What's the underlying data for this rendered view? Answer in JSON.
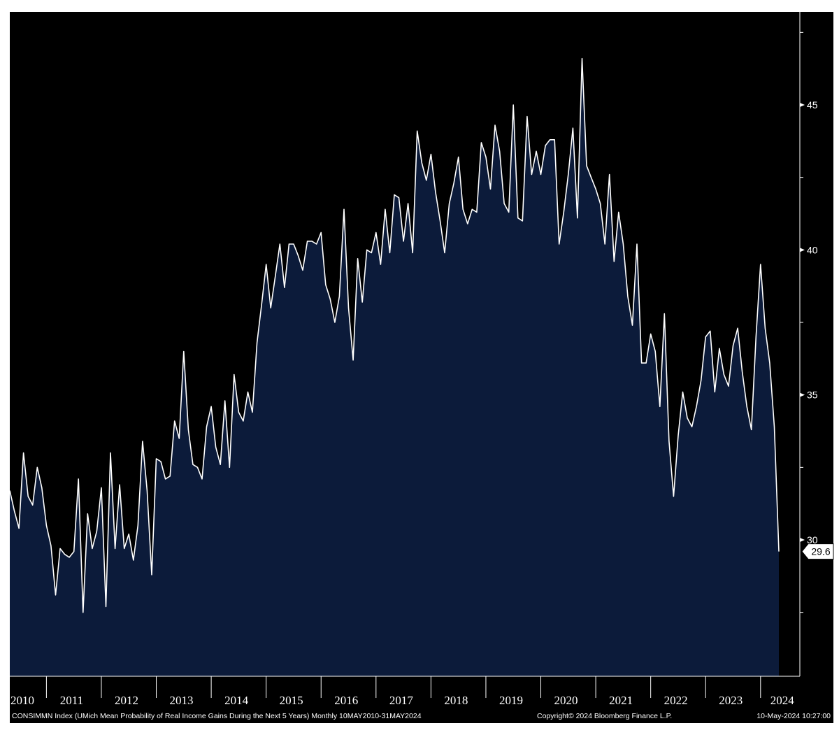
{
  "chart_data": {
    "type": "area",
    "x_start": "2010-05",
    "x_end": "2024-05",
    "frequency": "Monthly",
    "ylim": [
      25,
      48.5
    ],
    "yticks": [
      30,
      35,
      40,
      45
    ],
    "x_year_labels": [
      "2010",
      "2011",
      "2012",
      "2013",
      "2014",
      "2015",
      "2016",
      "2017",
      "2018",
      "2019",
      "2020",
      "2021",
      "2022",
      "2023",
      "2024"
    ],
    "last_value_label": "29.6",
    "grid": false,
    "colors": {
      "background": "#000000",
      "fill": "#0c1b3a",
      "line": "#ffffff"
    },
    "values": [
      31.7,
      31.0,
      30.4,
      33.0,
      31.5,
      31.2,
      32.5,
      31.8,
      30.5,
      29.8,
      28.1,
      29.7,
      29.5,
      29.4,
      29.6,
      32.1,
      27.5,
      30.9,
      29.7,
      30.3,
      31.8,
      27.7,
      33.0,
      29.7,
      31.9,
      29.7,
      30.2,
      29.3,
      30.5,
      33.4,
      31.7,
      28.8,
      32.8,
      32.7,
      32.1,
      32.2,
      34.1,
      33.5,
      36.5,
      33.8,
      32.6,
      32.5,
      32.1,
      33.9,
      34.6,
      33.2,
      32.6,
      34.8,
      32.5,
      35.7,
      34.4,
      34.1,
      35.1,
      34.4,
      36.8,
      38.1,
      39.5,
      38.0,
      39.1,
      40.2,
      38.7,
      40.2,
      40.2,
      39.8,
      39.3,
      40.3,
      40.3,
      40.2,
      40.6,
      38.8,
      38.3,
      37.5,
      38.4,
      41.4,
      38.0,
      36.2,
      39.7,
      38.2,
      40.0,
      39.9,
      40.6,
      39.5,
      41.4,
      39.9,
      41.9,
      41.8,
      40.3,
      41.6,
      39.9,
      44.1,
      43.0,
      42.4,
      43.3,
      42.0,
      41.0,
      39.9,
      41.6,
      42.3,
      43.2,
      41.4,
      40.9,
      41.4,
      41.3,
      43.7,
      43.2,
      42.1,
      44.3,
      43.4,
      41.6,
      41.3,
      45.0,
      41.1,
      41.0,
      44.6,
      42.6,
      43.4,
      42.6,
      43.6,
      43.8,
      43.8,
      40.2,
      41.3,
      42.6,
      44.2,
      41.1,
      46.6,
      42.9,
      42.5,
      42.1,
      41.6,
      40.2,
      42.6,
      39.6,
      41.3,
      40.2,
      38.4,
      37.4,
      40.2,
      36.1,
      36.1,
      37.1,
      36.5,
      34.6,
      37.8,
      33.4,
      31.5,
      33.6,
      35.1,
      34.2,
      33.9,
      34.6,
      35.5,
      37.0,
      37.2,
      35.1,
      36.6,
      35.7,
      35.3,
      36.7,
      37.3,
      35.8,
      34.6,
      33.8,
      37.0,
      39.5,
      37.3,
      36.1,
      33.9,
      29.6
    ]
  },
  "footer": {
    "series_desc": "CONSIMMN Index (UMich Mean Probability of Real Income Gains During the Next 5 Years)  Monthly 10MAY2010-31MAY2024",
    "copyright": "Copyright© 2024 Bloomberg Finance L.P.",
    "timestamp": "10-May-2024 10:27:00"
  }
}
